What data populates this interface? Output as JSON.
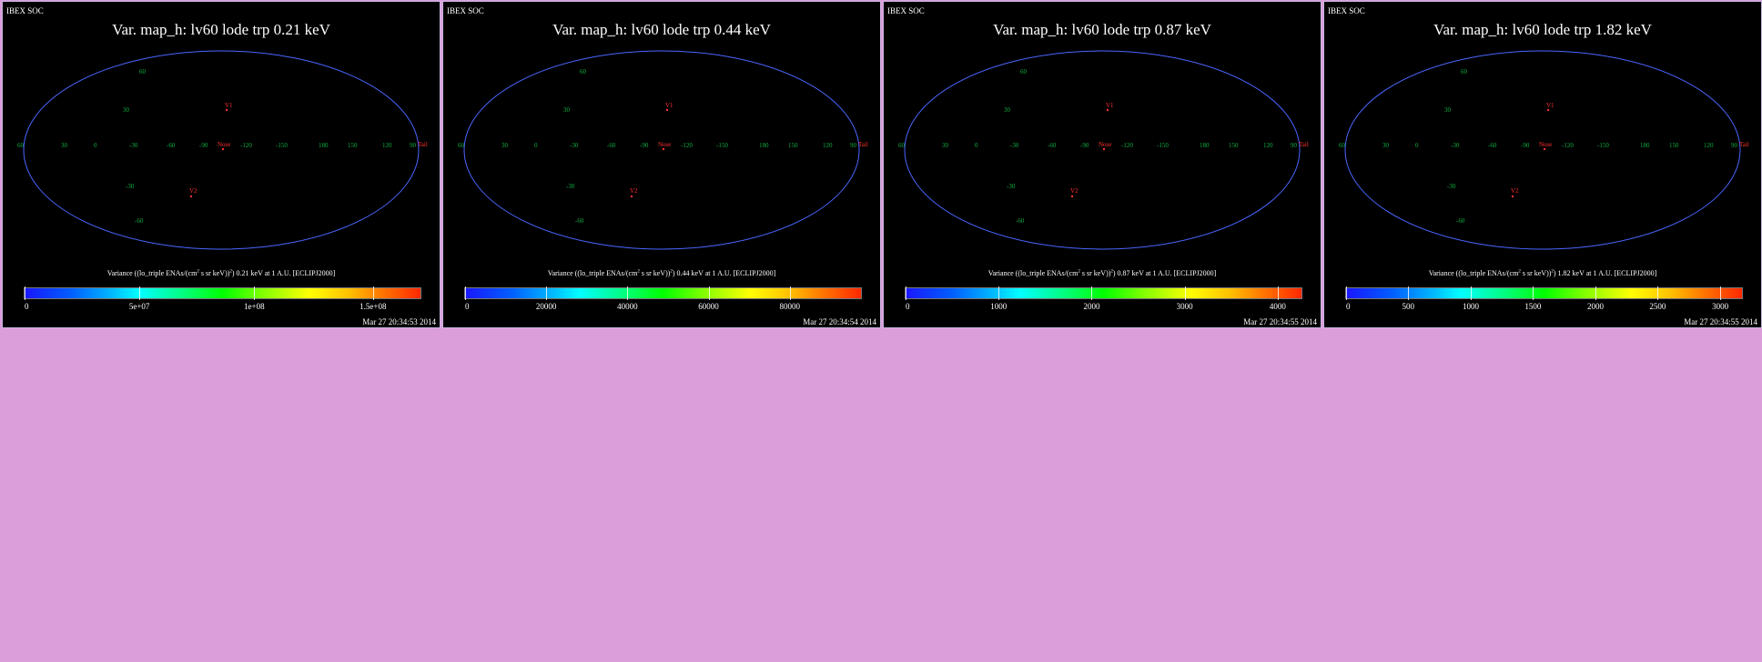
{
  "panels": [
    {
      "brand": "IBEX SOC",
      "title": "Var. map_h: lv60 lode trp 0.21 keV",
      "cbar_pre": "Variance ((lo_triple ENAs/(cm",
      "cbar_mid": " s sr keV))",
      "cbar_post": ") 0.21 keV at 1 A.U. [ECLIPJ2000]",
      "ticks": [
        "0",
        "5e+07",
        "1e+08",
        "1.5e+08"
      ],
      "date": "Mar 27 20:34:53 2014"
    },
    {
      "brand": "IBEX SOC",
      "title": "Var. map_h: lv60 lode trp 0.44 keV",
      "cbar_pre": "Variance ((lo_triple ENAs/(cm",
      "cbar_mid": " s sr keV))",
      "cbar_post": ") 0.44 keV at 1 A.U. [ECLIPJ2000]",
      "ticks": [
        "0",
        "20000",
        "40000",
        "60000",
        "80000"
      ],
      "date": "Mar 27 20:34:54 2014"
    },
    {
      "brand": "IBEX SOC",
      "title": "Var. map_h: lv60 lode trp 0.87 keV",
      "cbar_pre": "Variance ((lo_triple ENAs/(cm",
      "cbar_mid": " s sr keV))",
      "cbar_post": ") 0.87 keV at 1 A.U. [ECLIPJ2000]",
      "ticks": [
        "0",
        "1000",
        "2000",
        "3000",
        "4000"
      ],
      "date": "Mar 27 20:34:55 2014"
    },
    {
      "brand": "IBEX SOC",
      "title": "Var. map_h: lv60 lode trp 1.82 keV",
      "cbar_pre": "Variance ((lo_triple ENAs/(cm",
      "cbar_mid": " s sr keV))",
      "cbar_post": ") 1.82 keV at 1 A.U. [ECLIPJ2000]",
      "ticks": [
        "0",
        "500",
        "1000",
        "1500",
        "2000",
        "2500",
        "3000"
      ],
      "date": "Mar 27 20:34:55 2014"
    }
  ],
  "sup_text": "2",
  "map_labels": {
    "lon": [
      "60",
      "30",
      "0",
      "-30",
      "-60",
      "-90",
      "-120",
      "-150",
      "180",
      "150",
      "120",
      "90"
    ],
    "lat": [
      "60",
      "30",
      "-30",
      "-60"
    ],
    "points": [
      "V1",
      "V2",
      "Nose",
      "Tail"
    ]
  },
  "colors": {
    "background": "#dc9ddb",
    "panel_bg": "#000000",
    "map_fill": "#0a14f5",
    "grid": "#3c5cff",
    "grid_label": "#10b040",
    "marker": "#ff3030",
    "scale": [
      "#1a16ff",
      "#00b8ff",
      "#00ffff",
      "#00ff00",
      "#ffff00",
      "#ff7000",
      "#ff2800"
    ]
  }
}
